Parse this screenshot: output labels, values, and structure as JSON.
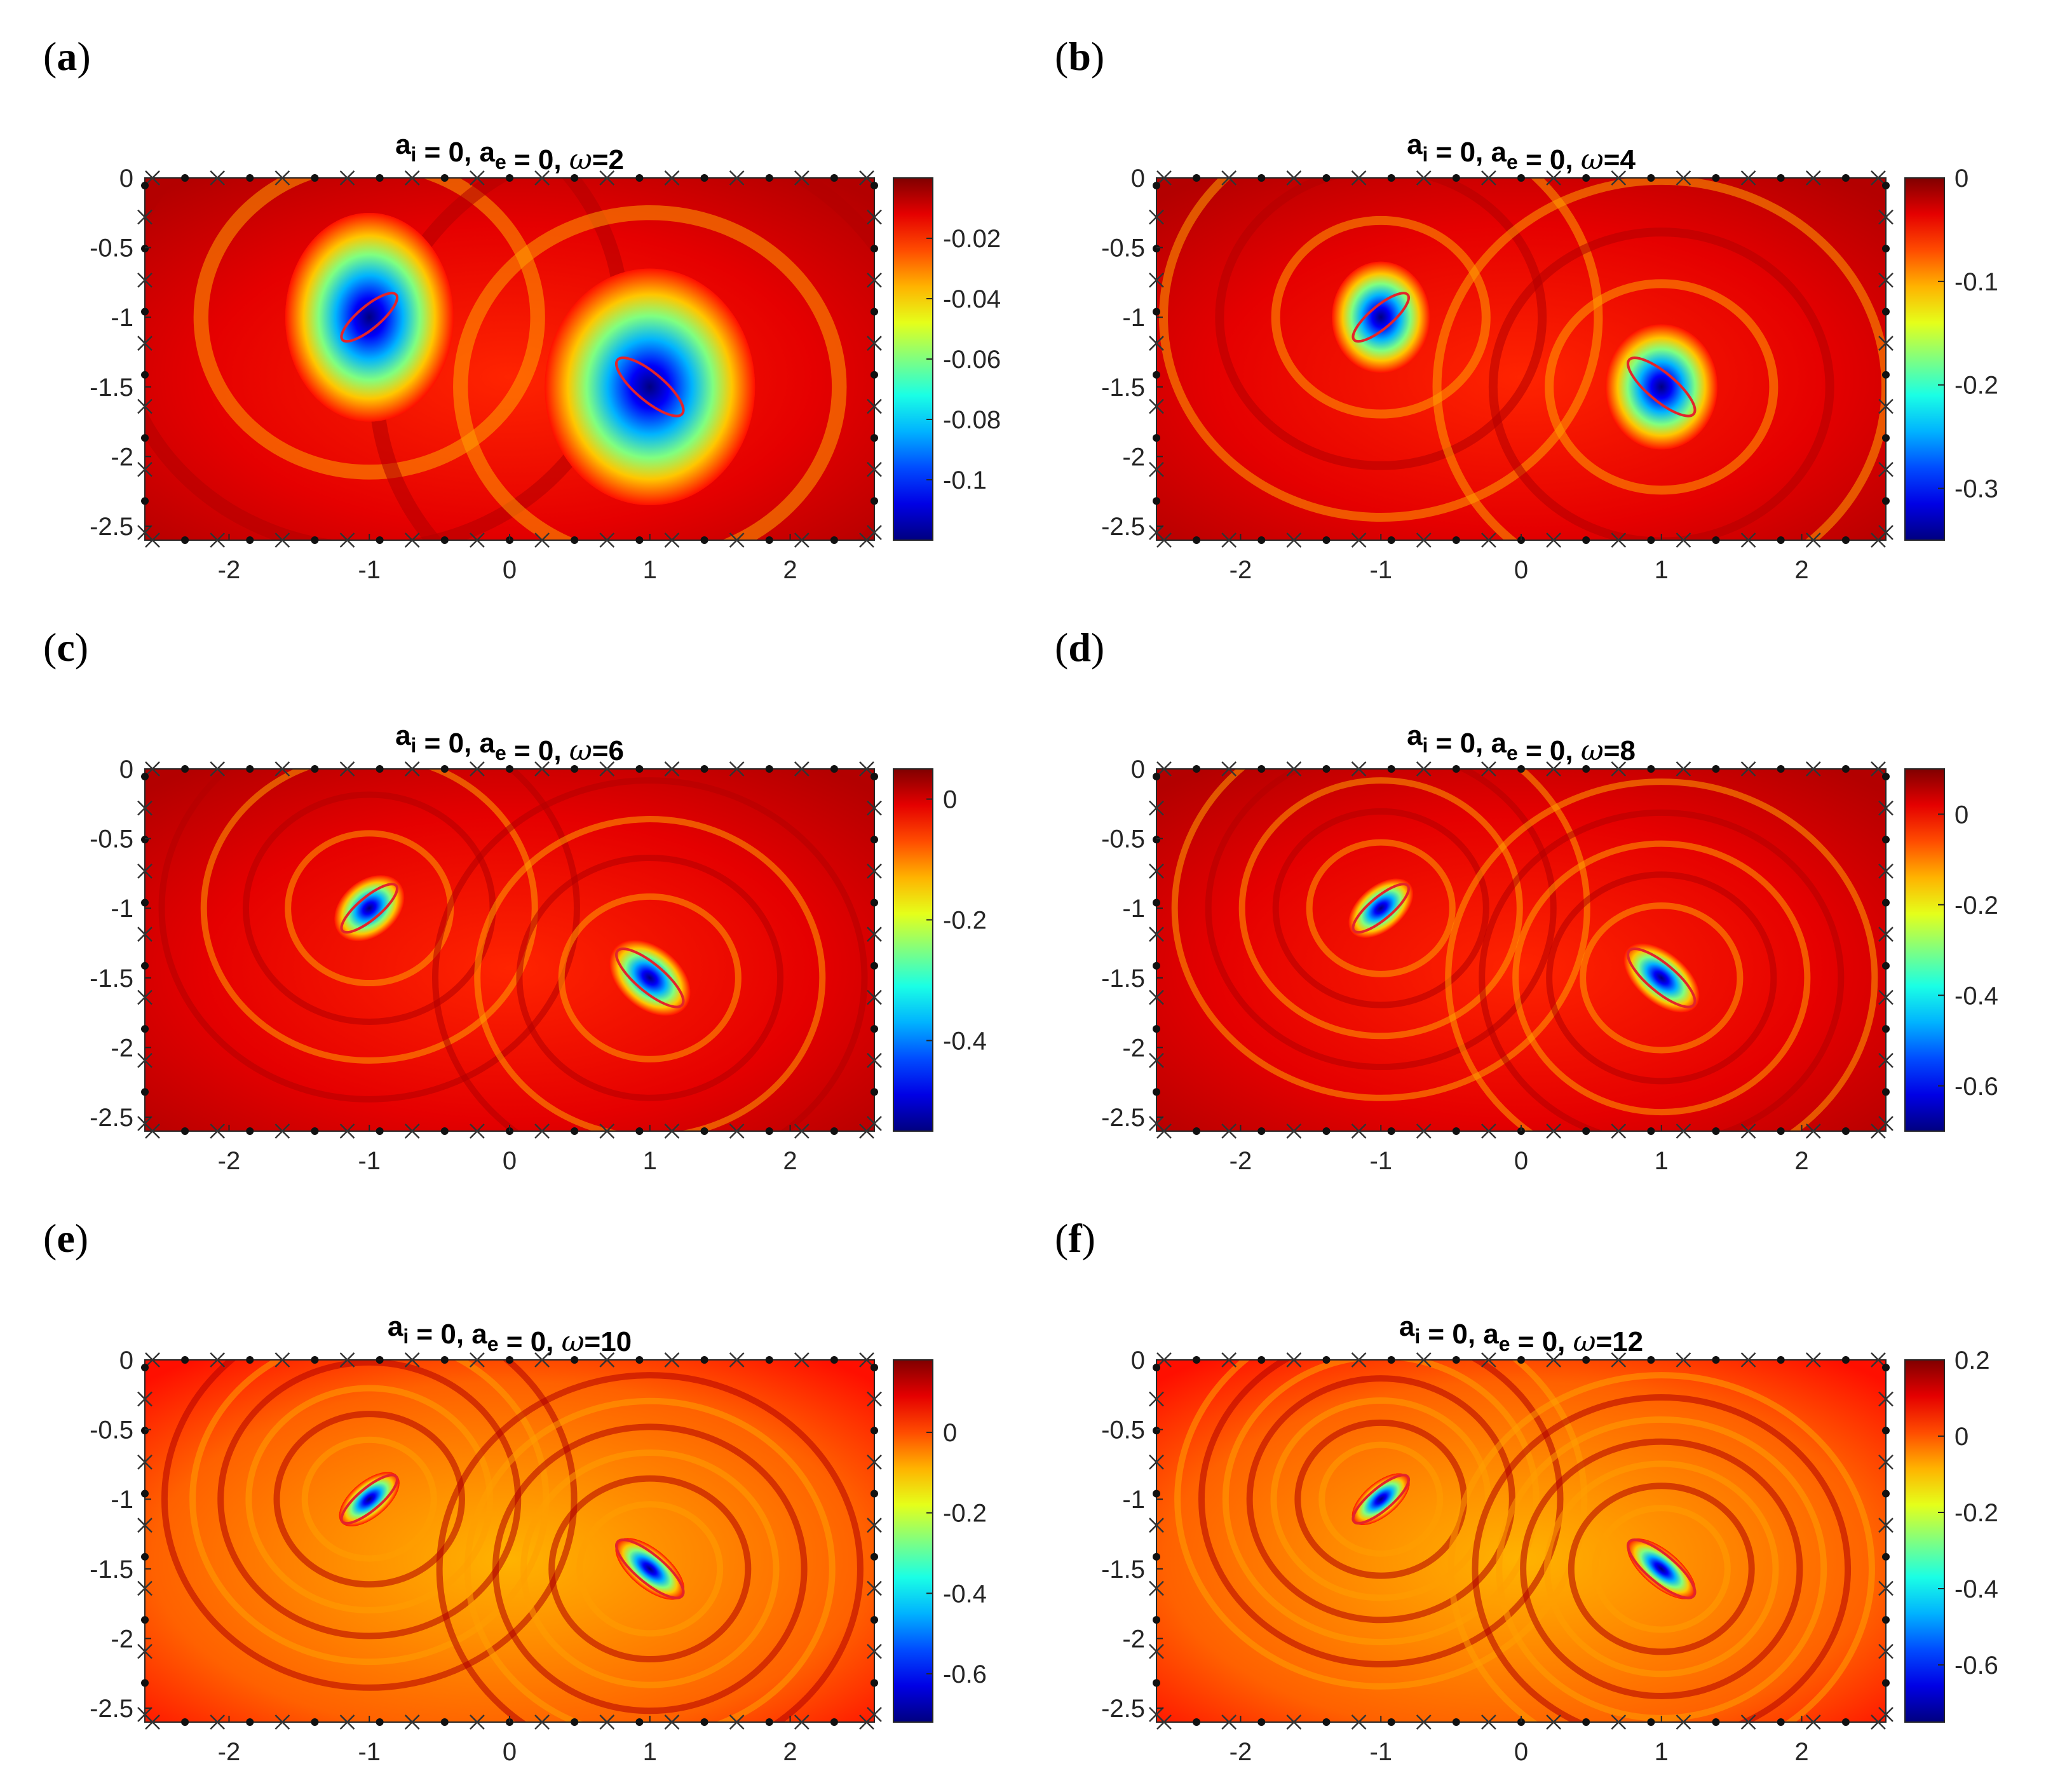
{
  "figure": {
    "panels": [
      {
        "letter": "a",
        "a_i": "0",
        "a_e": "0",
        "omega": "2"
      },
      {
        "letter": "b",
        "a_i": "0",
        "a_e": "0",
        "omega": "4"
      },
      {
        "letter": "c",
        "a_i": "0",
        "a_e": "0",
        "omega": "6"
      },
      {
        "letter": "d",
        "a_i": "0",
        "a_e": "0",
        "omega": "8"
      },
      {
        "letter": "e",
        "a_i": "0",
        "a_e": "0",
        "omega": "10"
      },
      {
        "letter": "f",
        "a_i": "0",
        "a_e": "0",
        "omega": "12"
      }
    ],
    "colormap": "jet",
    "markers": {
      "cross": "×",
      "dot": "•"
    },
    "ellipse_color": "#e3242b"
  },
  "chart_data": [
    {
      "type": "heatmap",
      "title": "a_i = 0,   a_e = 0,   ω=2",
      "xlim": [
        -2.6,
        2.6
      ],
      "ylim": [
        -2.6,
        0
      ],
      "xticks": [
        -2,
        -1,
        0,
        1,
        2
      ],
      "xtick_labels": [
        "-2",
        "-1",
        "0",
        "1",
        "2"
      ],
      "yticks": [
        0,
        -0.5,
        -1,
        -1.5,
        -2,
        -2.5
      ],
      "ytick_labels": [
        "0",
        "-0.5",
        "-1",
        "-1.5",
        "-2",
        "-2.5"
      ],
      "colorbar": {
        "range": [
          -0.12,
          0
        ],
        "ticks": [
          -0.02,
          -0.04,
          -0.06,
          -0.08,
          -0.1
        ],
        "tick_labels": [
          "-0.02",
          "-0.04",
          "-0.06",
          "-0.08",
          "-0.1"
        ]
      },
      "inclusions": [
        {
          "center": [
            -1,
            -1
          ],
          "semi_axes": [
            0.25,
            0.08
          ],
          "angle_deg": -40,
          "blob_semi_axes": [
            0.6,
            0.75
          ]
        },
        {
          "center": [
            1,
            -1.5
          ],
          "semi_axes": [
            0.3,
            0.1
          ],
          "angle_deg": 40,
          "blob_semi_axes": [
            0.75,
            0.85
          ]
        }
      ]
    },
    {
      "type": "heatmap",
      "title": "a_i = 0,   a_e = 0,   ω=4",
      "xlim": [
        -2.6,
        2.6
      ],
      "ylim": [
        -2.6,
        0
      ],
      "xticks": [
        -2,
        -1,
        0,
        1,
        2
      ],
      "xtick_labels": [
        "-2",
        "-1",
        "0",
        "1",
        "2"
      ],
      "yticks": [
        0,
        -0.5,
        -1,
        -1.5,
        -2,
        -2.5
      ],
      "ytick_labels": [
        "0",
        "-0.5",
        "-1",
        "-1.5",
        "-2",
        "-2.5"
      ],
      "colorbar": {
        "range": [
          -0.35,
          0
        ],
        "ticks": [
          0,
          -0.1,
          -0.2,
          -0.3
        ],
        "tick_labels": [
          "0",
          "-0.1",
          "-0.2",
          "-0.3"
        ]
      },
      "inclusions": [
        {
          "center": [
            -1,
            -1
          ],
          "semi_axes": [
            0.25,
            0.08
          ],
          "angle_deg": -40,
          "blob_semi_axes": [
            0.35,
            0.4
          ]
        },
        {
          "center": [
            1,
            -1.5
          ],
          "semi_axes": [
            0.3,
            0.1
          ],
          "angle_deg": 40,
          "blob_semi_axes": [
            0.4,
            0.45
          ]
        }
      ]
    },
    {
      "type": "heatmap",
      "title": "a_i = 0,   a_e = 0,   ω=6",
      "xlim": [
        -2.6,
        2.6
      ],
      "ylim": [
        -2.6,
        0
      ],
      "xticks": [
        -2,
        -1,
        0,
        1,
        2
      ],
      "xtick_labels": [
        "-2",
        "-1",
        "0",
        "1",
        "2"
      ],
      "yticks": [
        0,
        -0.5,
        -1,
        -1.5,
        -2,
        -2.5
      ],
      "ytick_labels": [
        "0",
        "-0.5",
        "-1",
        "-1.5",
        "-2",
        "-2.5"
      ],
      "colorbar": {
        "range": [
          -0.55,
          0.05
        ],
        "ticks": [
          0,
          -0.2,
          -0.4
        ],
        "tick_labels": [
          "0",
          "-0.2",
          "-0.4"
        ]
      },
      "inclusions": [
        {
          "center": [
            -1,
            -1
          ],
          "semi_axes": [
            0.25,
            0.08
          ],
          "angle_deg": -40,
          "blob_semi_axes": [
            0.28,
            0.2
          ]
        },
        {
          "center": [
            1,
            -1.5
          ],
          "semi_axes": [
            0.3,
            0.1
          ],
          "angle_deg": 40,
          "blob_semi_axes": [
            0.33,
            0.22
          ]
        }
      ]
    },
    {
      "type": "heatmap",
      "title": "a_i = 0,   a_e = 0,   ω=8",
      "xlim": [
        -2.6,
        2.6
      ],
      "ylim": [
        -2.6,
        0
      ],
      "xticks": [
        -2,
        -1,
        0,
        1,
        2
      ],
      "xtick_labels": [
        "-2",
        "-1",
        "0",
        "1",
        "2"
      ],
      "yticks": [
        0,
        -0.5,
        -1,
        -1.5,
        -2,
        -2.5
      ],
      "ytick_labels": [
        "0",
        "-0.5",
        "-1",
        "-1.5",
        "-2",
        "-2.5"
      ],
      "colorbar": {
        "range": [
          -0.7,
          0.1
        ],
        "ticks": [
          0,
          -0.2,
          -0.4,
          -0.6
        ],
        "tick_labels": [
          "0",
          "-0.2",
          "-0.4",
          "-0.6"
        ]
      },
      "inclusions": [
        {
          "center": [
            -1,
            -1
          ],
          "semi_axes": [
            0.25,
            0.08
          ],
          "angle_deg": -40,
          "blob_semi_axes": [
            0.27,
            0.16
          ]
        },
        {
          "center": [
            1,
            -1.5
          ],
          "semi_axes": [
            0.3,
            0.1
          ],
          "angle_deg": 40,
          "blob_semi_axes": [
            0.32,
            0.18
          ]
        }
      ]
    },
    {
      "type": "heatmap",
      "title": "a_i = 0,   a_e = 0,   ω=10",
      "xlim": [
        -2.6,
        2.6
      ],
      "ylim": [
        -2.6,
        0
      ],
      "xticks": [
        -2,
        -1,
        0,
        1,
        2
      ],
      "xtick_labels": [
        "-2",
        "-1",
        "0",
        "1",
        "2"
      ],
      "yticks": [
        0,
        -0.5,
        -1,
        -1.5,
        -2,
        -2.5
      ],
      "ytick_labels": [
        "0",
        "-0.5",
        "-1",
        "-1.5",
        "-2",
        "-2.5"
      ],
      "colorbar": {
        "range": [
          -0.72,
          0.18
        ],
        "ticks": [
          0,
          -0.2,
          -0.4,
          -0.6
        ],
        "tick_labels": [
          "0",
          "-0.2",
          "-0.4",
          "-0.6"
        ]
      },
      "inclusions": [
        {
          "center": [
            -1,
            -1
          ],
          "semi_axes": [
            0.25,
            0.08
          ],
          "angle_deg": -40,
          "blob_semi_axes": [
            0.26,
            0.13
          ]
        },
        {
          "center": [
            1,
            -1.5
          ],
          "semi_axes": [
            0.3,
            0.1
          ],
          "angle_deg": 40,
          "blob_semi_axes": [
            0.3,
            0.14
          ]
        }
      ]
    },
    {
      "type": "heatmap",
      "title": "a_i = 0,   a_e = 0,   ω=12",
      "xlim": [
        -2.6,
        2.6
      ],
      "ylim": [
        -2.6,
        0
      ],
      "xticks": [
        -2,
        -1,
        0,
        1,
        2
      ],
      "xtick_labels": [
        "-2",
        "-1",
        "0",
        "1",
        "2"
      ],
      "yticks": [
        0,
        -0.5,
        -1,
        -1.5,
        -2,
        -2.5
      ],
      "ytick_labels": [
        "0",
        "-0.5",
        "-1",
        "-1.5",
        "-2",
        "-2.5"
      ],
      "colorbar": {
        "range": [
          -0.75,
          0.2
        ],
        "ticks": [
          0.2,
          0,
          -0.2,
          -0.4,
          -0.6
        ],
        "tick_labels": [
          "0.2",
          "0",
          "-0.2",
          "-0.4",
          "-0.6"
        ]
      },
      "inclusions": [
        {
          "center": [
            -1,
            -1
          ],
          "semi_axes": [
            0.25,
            0.08
          ],
          "angle_deg": -40,
          "blob_semi_axes": [
            0.25,
            0.12
          ]
        },
        {
          "center": [
            1,
            -1.5
          ],
          "semi_axes": [
            0.3,
            0.1
          ],
          "angle_deg": 40,
          "blob_semi_axes": [
            0.3,
            0.13
          ]
        }
      ]
    }
  ]
}
